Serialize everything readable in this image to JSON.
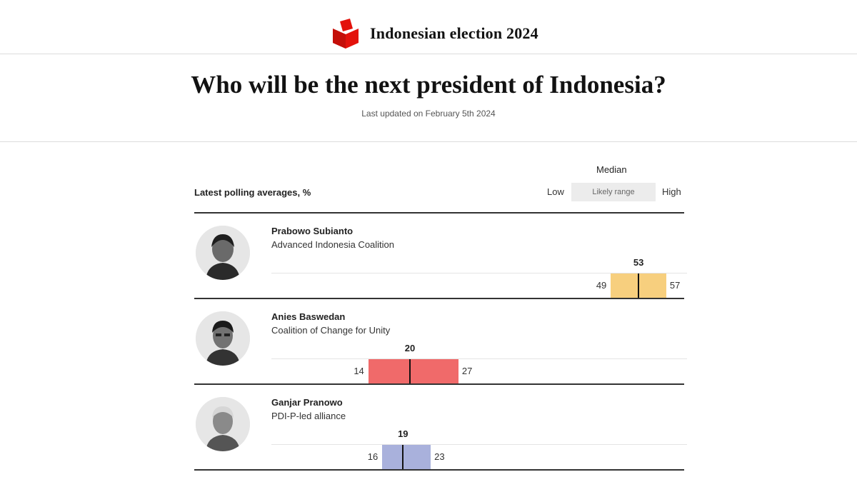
{
  "header": {
    "brand_title": "Indonesian election 2024",
    "title": "Who will be the next president of Indonesia?",
    "updated": "Last updated on February 5th 2024"
  },
  "legend": {
    "median": "Median",
    "low": "Low",
    "range": "Likely range",
    "high": "High"
  },
  "colors": {
    "brand_red": "#e3120b",
    "prabowo": "#f7cf7e",
    "anies": "#f06a6a",
    "ganjar": "#a9b1dc"
  },
  "chart_data": {
    "type": "table",
    "title": "Latest polling averages, %",
    "xlim": [
      0,
      60
    ],
    "columns": [
      "Median",
      "Low",
      "High"
    ],
    "rows": [
      {
        "name": "Prabowo Subianto",
        "party": "Advanced Indonesia Coalition",
        "median": 53,
        "low": 49,
        "high": 57,
        "color": "#f7cf7e"
      },
      {
        "name": "Anies Baswedan",
        "party": "Coalition of Change for Unity",
        "median": 20,
        "low": 14,
        "high": 27,
        "color": "#f06a6a"
      },
      {
        "name": "Ganjar Pranowo",
        "party": "PDI-P-led alliance",
        "median": 19,
        "low": 16,
        "high": 23,
        "color": "#a9b1dc"
      }
    ]
  }
}
